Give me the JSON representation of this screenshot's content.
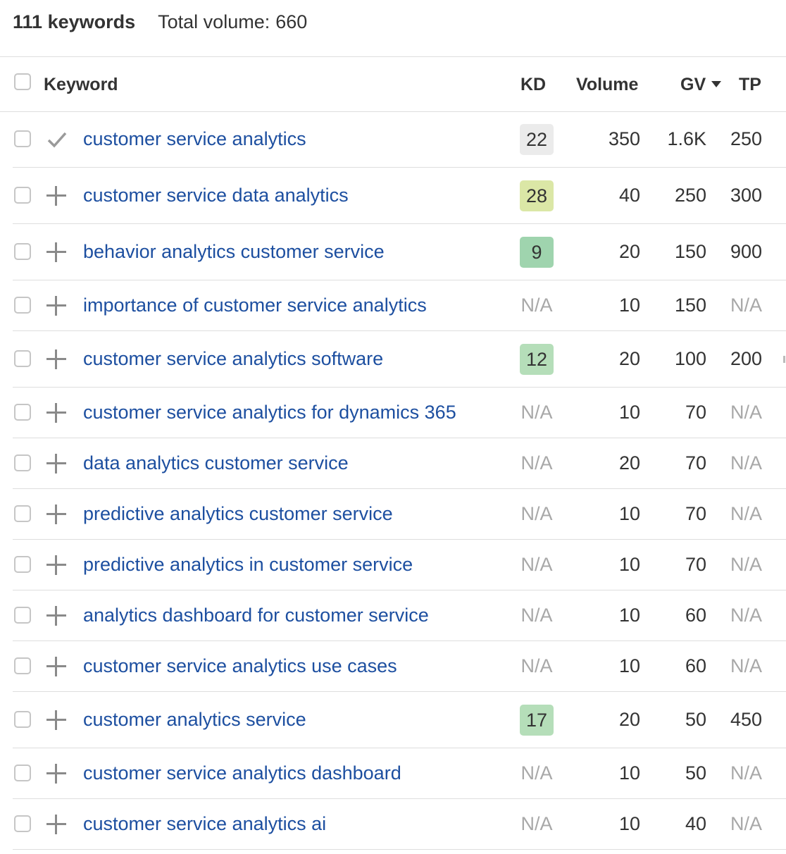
{
  "summary": {
    "count_label": "111 keywords",
    "volume_label": "Total volume:",
    "volume_value": "660"
  },
  "columns": {
    "keyword": "Keyword",
    "kd": "KD",
    "volume": "Volume",
    "gv": "GV",
    "tp": "TP"
  },
  "colors": {
    "kd_22": "#ebebeb",
    "kd_28": "#dbe7a6",
    "kd_9": "#9fd4ae",
    "kd_12": "#b5deb9",
    "kd_17": "#b5deb9",
    "link": "#1d4fa0",
    "na": "#a8a8a8"
  },
  "rows": [
    {
      "keyword": "customer service analytics",
      "kd": "22",
      "volume": "350",
      "gv": "1.6K",
      "tp": "250",
      "added": true
    },
    {
      "keyword": "customer service data analytics",
      "kd": "28",
      "volume": "40",
      "gv": "250",
      "tp": "300",
      "added": false
    },
    {
      "keyword": "behavior analytics customer service",
      "kd": "9",
      "volume": "20",
      "gv": "150",
      "tp": "900",
      "added": false
    },
    {
      "keyword": "importance of customer service analytics",
      "kd": "N/A",
      "volume": "10",
      "gv": "150",
      "tp": "N/A",
      "added": false
    },
    {
      "keyword": "customer service analytics software",
      "kd": "12",
      "volume": "20",
      "gv": "100",
      "tp": "200",
      "added": false
    },
    {
      "keyword": "customer service analytics for dynamics 365",
      "kd": "N/A",
      "volume": "10",
      "gv": "70",
      "tp": "N/A",
      "added": false
    },
    {
      "keyword": "data analytics customer service",
      "kd": "N/A",
      "volume": "20",
      "gv": "70",
      "tp": "N/A",
      "added": false
    },
    {
      "keyword": "predictive analytics customer service",
      "kd": "N/A",
      "volume": "10",
      "gv": "70",
      "tp": "N/A",
      "added": false
    },
    {
      "keyword": "predictive analytics in customer service",
      "kd": "N/A",
      "volume": "10",
      "gv": "70",
      "tp": "N/A",
      "added": false
    },
    {
      "keyword": "analytics dashboard for customer service",
      "kd": "N/A",
      "volume": "10",
      "gv": "60",
      "tp": "N/A",
      "added": false
    },
    {
      "keyword": "customer service analytics use cases",
      "kd": "N/A",
      "volume": "10",
      "gv": "60",
      "tp": "N/A",
      "added": false
    },
    {
      "keyword": "customer analytics service",
      "kd": "17",
      "volume": "20",
      "gv": "50",
      "tp": "450",
      "added": false
    },
    {
      "keyword": "customer service analytics dashboard",
      "kd": "N/A",
      "volume": "10",
      "gv": "50",
      "tp": "N/A",
      "added": false
    },
    {
      "keyword": "customer service analytics ai",
      "kd": "N/A",
      "volume": "10",
      "gv": "40",
      "tp": "N/A",
      "added": false
    }
  ]
}
